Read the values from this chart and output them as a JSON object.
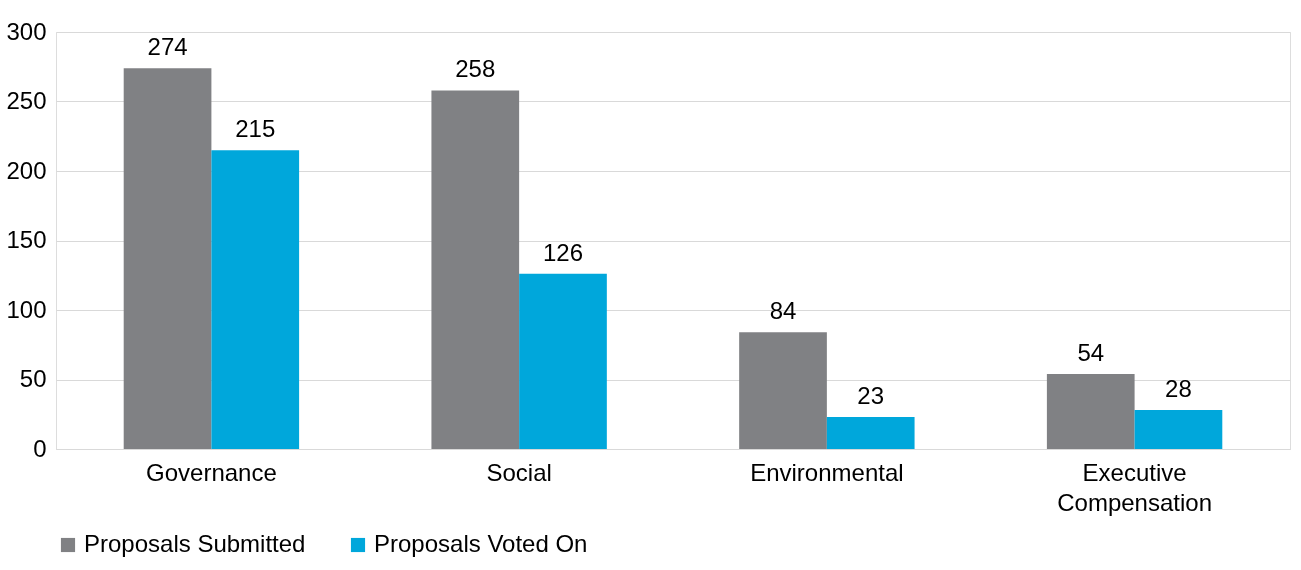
{
  "chart_data": {
    "type": "bar",
    "categories": [
      "Governance",
      "Social",
      "Environmental",
      "Executive Compensation"
    ],
    "series": [
      {
        "name": "Proposals Submitted",
        "color": "#808184",
        "values": [
          274,
          258,
          84,
          54
        ]
      },
      {
        "name": "Proposals Voted On",
        "color": "#00a7db",
        "values": [
          215,
          126,
          23,
          28
        ]
      }
    ],
    "ylim": [
      0,
      300
    ],
    "yticks": [
      0,
      50,
      100,
      150,
      200,
      250,
      300
    ],
    "grid": "y",
    "legend": "bottom",
    "data_labels": true
  }
}
